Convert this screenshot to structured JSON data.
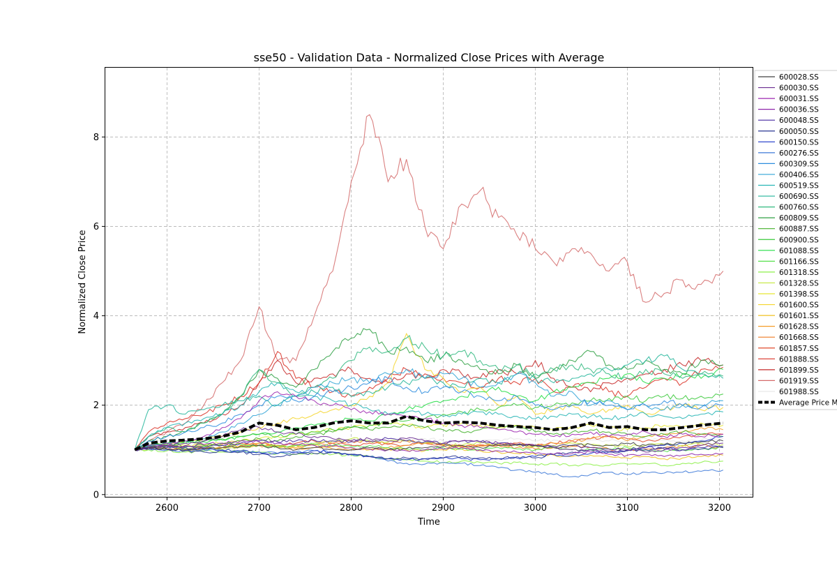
{
  "chart_data": {
    "type": "line",
    "title": "sse50 - Validation Data - Normalized Close Prices with Average",
    "xlabel": "Time",
    "ylabel": "Normalized Close Price",
    "xlim": [
      2533,
      3236
    ],
    "ylim": [
      -0.05,
      9.55
    ],
    "x_ticks": [
      2600,
      2700,
      2800,
      2900,
      3000,
      3100,
      3200
    ],
    "y_ticks": [
      0,
      2,
      4,
      6,
      8
    ],
    "grid": true,
    "legend_position": "right, partially clipped",
    "x": [
      2565,
      2580,
      2600,
      2620,
      2640,
      2660,
      2680,
      2700,
      2720,
      2740,
      2760,
      2780,
      2800,
      2820,
      2840,
      2860,
      2880,
      2900,
      2920,
      2940,
      2960,
      2980,
      3000,
      3020,
      3040,
      3060,
      3080,
      3100,
      3120,
      3140,
      3160,
      3180,
      3204
    ],
    "series": [
      {
        "name": "600028.SS",
        "color": "#404040",
        "values": [
          1.0,
          1.05,
          1.02,
          1.0,
          1.03,
          1.05,
          1.08,
          1.1,
          1.05,
          1.0,
          1.05,
          1.02,
          1.0,
          1.05,
          1.0,
          1.03,
          1.05,
          1.08,
          1.1,
          1.05,
          1.1,
          1.12,
          1.1,
          1.05,
          1.1,
          1.12,
          1.1,
          1.15,
          1.1,
          1.12,
          1.15,
          1.18,
          1.2
        ]
      },
      {
        "name": "600030.SS",
        "color": "#6a2c91",
        "values": [
          1.0,
          1.08,
          1.1,
          1.15,
          1.2,
          1.3,
          1.45,
          1.5,
          1.4,
          1.35,
          1.3,
          1.25,
          1.2,
          1.25,
          1.2,
          1.25,
          1.2,
          1.15,
          1.2,
          1.18,
          1.15,
          1.1,
          1.1,
          1.05,
          1.0,
          1.0,
          0.98,
          1.0,
          0.95,
          1.0,
          1.05,
          1.1,
          1.15
        ]
      },
      {
        "name": "600031.SS",
        "color": "#9c27b0",
        "values": [
          1.0,
          1.1,
          1.15,
          1.2,
          1.3,
          1.5,
          1.7,
          2.1,
          2.3,
          2.2,
          2.1,
          2.0,
          1.9,
          1.85,
          1.8,
          1.75,
          1.7,
          1.6,
          1.55,
          1.5,
          1.45,
          1.4,
          1.35,
          1.3,
          1.35,
          1.4,
          1.3,
          1.35,
          1.4,
          1.3,
          1.35,
          1.3,
          1.35
        ]
      },
      {
        "name": "600036.SS",
        "color": "#8e24aa",
        "values": [
          1.0,
          1.05,
          1.08,
          1.1,
          1.12,
          1.15,
          1.2,
          1.18,
          1.15,
          1.12,
          1.1,
          1.08,
          1.05,
          1.02,
          1.0,
          0.98,
          1.0,
          1.02,
          1.05,
          1.0,
          0.98,
          0.95,
          0.92,
          0.9,
          0.92,
          0.95,
          0.9,
          0.88,
          0.9,
          0.85,
          0.88,
          0.9,
          0.92
        ]
      },
      {
        "name": "600048.SS",
        "color": "#4527a0",
        "values": [
          1.0,
          1.02,
          1.05,
          1.08,
          1.05,
          1.1,
          1.15,
          1.2,
          1.18,
          1.2,
          1.22,
          1.2,
          1.18,
          1.2,
          1.25,
          1.2,
          1.18,
          1.15,
          1.2,
          1.18,
          1.15,
          1.12,
          1.1,
          1.08,
          1.1,
          1.05,
          1.02,
          1.0,
          1.05,
          1.02,
          1.0,
          1.05,
          1.08
        ]
      },
      {
        "name": "600050.SS",
        "color": "#283593",
        "values": [
          1.0,
          1.05,
          1.02,
          0.98,
          0.95,
          0.98,
          0.95,
          0.9,
          0.85,
          0.9,
          0.92,
          0.95,
          0.9,
          0.85,
          0.8,
          0.82,
          0.8,
          0.82,
          0.85,
          0.82,
          0.8,
          0.85,
          0.82,
          0.9,
          0.95,
          1.0,
          0.95,
          0.98,
          1.0,
          1.05,
          1.0,
          1.02,
          1.05
        ]
      },
      {
        "name": "600150.SS",
        "color": "#1a35c7",
        "values": [
          1.0,
          1.05,
          1.08,
          1.05,
          1.02,
          1.0,
          0.98,
          0.95,
          0.92,
          0.95,
          0.98,
          0.95,
          0.9,
          0.85,
          0.8,
          0.78,
          0.8,
          0.82,
          0.8,
          0.78,
          0.8,
          0.82,
          0.85,
          0.9,
          0.88,
          0.92,
          0.95,
          1.0,
          1.05,
          1.1,
          1.15,
          1.2,
          1.3
        ]
      },
      {
        "name": "600276.SS",
        "color": "#3c78d8",
        "values": [
          1.0,
          1.02,
          1.0,
          0.98,
          1.0,
          0.98,
          0.95,
          0.95,
          0.92,
          0.95,
          0.98,
          0.95,
          0.9,
          0.85,
          0.75,
          0.7,
          0.68,
          0.72,
          0.7,
          0.65,
          0.6,
          0.55,
          0.5,
          0.45,
          0.4,
          0.45,
          0.5,
          0.45,
          0.5,
          0.48,
          0.5,
          0.52,
          0.55
        ]
      },
      {
        "name": "600309.SS",
        "color": "#2b8cde",
        "values": [
          1.0,
          1.2,
          1.3,
          1.4,
          1.5,
          1.6,
          1.8,
          2.0,
          2.2,
          2.1,
          2.2,
          2.3,
          2.4,
          2.5,
          2.6,
          2.4,
          2.3,
          2.4,
          2.3,
          2.2,
          2.1,
          2.2,
          2.0,
          1.9,
          2.0,
          2.1,
          2.0,
          1.9,
          2.0,
          2.1,
          2.0,
          1.95,
          2.0
        ]
      },
      {
        "name": "600406.SS",
        "color": "#2fa3d6",
        "values": [
          1.0,
          1.1,
          1.15,
          1.2,
          1.25,
          1.4,
          1.6,
          1.8,
          2.0,
          2.2,
          2.4,
          2.5,
          2.6,
          2.5,
          2.7,
          2.8,
          2.6,
          2.7,
          2.6,
          2.4,
          2.5,
          2.7,
          2.5,
          2.2,
          2.3,
          2.0,
          2.1,
          1.9,
          2.0,
          1.9,
          2.0,
          2.0,
          2.1
        ]
      },
      {
        "name": "600519.SS",
        "color": "#26b5b5",
        "values": [
          1.0,
          1.3,
          1.5,
          1.6,
          1.7,
          1.8,
          2.0,
          2.3,
          2.5,
          2.3,
          2.2,
          2.1,
          2.0,
          1.9,
          1.8,
          1.85,
          1.8,
          1.75,
          1.8,
          1.85,
          1.8,
          1.75,
          1.7,
          1.75,
          1.8,
          1.75,
          1.7,
          1.75,
          1.8,
          1.75,
          1.7,
          1.8,
          1.85
        ]
      },
      {
        "name": "600690.SS",
        "color": "#22b59a",
        "values": [
          1.0,
          1.9,
          2.0,
          1.8,
          1.9,
          2.0,
          2.1,
          2.2,
          2.0,
          2.2,
          2.3,
          2.4,
          2.2,
          2.3,
          2.4,
          2.5,
          2.6,
          2.5,
          2.4,
          2.6,
          2.5,
          2.7,
          2.6,
          2.5,
          2.6,
          2.7,
          2.8,
          2.9,
          3.0,
          3.1,
          2.8,
          2.7,
          2.6
        ]
      },
      {
        "name": "600760.SS",
        "color": "#30b97f",
        "values": [
          1.0,
          1.3,
          1.5,
          1.4,
          1.6,
          1.8,
          2.2,
          2.8,
          2.5,
          2.2,
          2.4,
          2.6,
          3.0,
          3.3,
          3.2,
          3.5,
          3.3,
          3.1,
          3.2,
          3.0,
          2.8,
          2.9,
          2.7,
          2.8,
          2.9,
          2.8,
          2.7,
          2.6,
          2.8,
          2.7,
          2.6,
          2.7,
          2.65
        ]
      },
      {
        "name": "600809.SS",
        "color": "#2ea043",
        "values": [
          1.0,
          1.2,
          1.3,
          1.4,
          1.6,
          1.8,
          2.2,
          2.8,
          2.6,
          2.4,
          2.8,
          3.2,
          3.5,
          3.7,
          3.2,
          3.3,
          3.0,
          3.1,
          3.0,
          2.8,
          2.7,
          2.9,
          2.6,
          2.8,
          3.0,
          3.2,
          2.9,
          2.8,
          3.0,
          2.8,
          2.7,
          3.0,
          2.9
        ]
      },
      {
        "name": "600887.SS",
        "color": "#43b02a",
        "values": [
          1.0,
          1.05,
          1.1,
          1.08,
          1.1,
          1.15,
          1.2,
          1.25,
          1.2,
          1.3,
          1.35,
          1.4,
          1.5,
          1.45,
          1.5,
          1.55,
          1.5,
          1.45,
          1.4,
          1.45,
          1.5,
          1.55,
          1.4,
          1.35,
          1.4,
          1.45,
          1.4,
          1.35,
          1.3,
          1.35,
          1.4,
          1.35,
          1.3
        ]
      },
      {
        "name": "600900.SS",
        "color": "#3ac93a",
        "values": [
          1.0,
          1.1,
          1.12,
          1.15,
          1.2,
          1.25,
          1.3,
          1.35,
          1.3,
          1.35,
          1.4,
          1.45,
          1.5,
          1.55,
          1.6,
          1.65,
          1.7,
          1.8,
          1.85,
          1.9,
          1.95,
          2.0,
          1.95,
          2.0,
          2.05,
          2.1,
          2.15,
          2.2,
          2.1,
          2.2,
          2.15,
          2.2,
          2.25
        ]
      },
      {
        "name": "601088.SS",
        "color": "#22dd44",
        "values": [
          1.0,
          1.1,
          1.15,
          1.2,
          1.18,
          1.22,
          1.3,
          1.35,
          1.4,
          1.5,
          1.55,
          1.6,
          1.7,
          1.65,
          1.8,
          1.9,
          2.0,
          2.1,
          2.2,
          2.3,
          2.4,
          2.2,
          2.1,
          2.3,
          2.4,
          2.5,
          2.6,
          2.7,
          2.5,
          2.6,
          2.7,
          2.6,
          2.8
        ]
      },
      {
        "name": "601166.SS",
        "color": "#56e04c",
        "values": [
          1.0,
          1.08,
          1.1,
          1.05,
          1.08,
          1.1,
          1.12,
          1.1,
          1.08,
          1.1,
          1.12,
          1.1,
          1.08,
          1.1,
          1.05,
          1.02,
          1.0,
          1.05,
          1.02,
          1.0,
          1.05,
          1.02,
          1.0,
          1.05,
          1.02,
          1.0,
          1.02,
          1.05,
          1.0,
          0.98,
          1.0,
          1.02,
          1.05
        ]
      },
      {
        "name": "601318.SS",
        "color": "#8cf048",
        "values": [
          1.0,
          1.0,
          0.98,
          0.95,
          0.97,
          0.95,
          0.98,
          0.95,
          0.92,
          0.9,
          0.92,
          0.9,
          0.88,
          0.85,
          0.8,
          0.78,
          0.75,
          0.72,
          0.75,
          0.72,
          0.7,
          0.72,
          0.68,
          0.7,
          0.65,
          0.68,
          0.65,
          0.68,
          0.7,
          0.65,
          0.7,
          0.72,
          0.75
        ]
      },
      {
        "name": "601328.SS",
        "color": "#c3e83c",
        "values": [
          1.0,
          1.02,
          1.05,
          1.02,
          1.0,
          1.02,
          1.05,
          1.1,
          1.08,
          1.1,
          1.15,
          1.2,
          1.25,
          1.2,
          1.18,
          1.2,
          1.15,
          1.12,
          1.1,
          1.15,
          1.12,
          1.1,
          1.08,
          1.1,
          1.15,
          1.12,
          1.1,
          1.08,
          1.1,
          1.12,
          1.1,
          1.15,
          1.12
        ]
      },
      {
        "name": "601398.SS",
        "color": "#e6e830",
        "values": [
          1.0,
          1.05,
          1.08,
          1.1,
          1.12,
          1.15,
          1.2,
          1.25,
          1.3,
          1.35,
          1.4,
          1.45,
          1.5,
          1.55,
          1.6,
          1.55,
          1.5,
          1.55,
          1.6,
          1.55,
          1.5,
          1.55,
          1.5,
          1.45,
          1.5,
          1.55,
          1.5,
          1.45,
          1.5,
          1.55,
          1.5,
          1.6,
          1.55
        ]
      },
      {
        "name": "601600.SS",
        "color": "#f5d52b",
        "values": [
          1.0,
          1.1,
          1.15,
          1.2,
          1.25,
          1.3,
          1.4,
          1.5,
          1.6,
          1.7,
          1.8,
          1.9,
          2.0,
          2.2,
          2.5,
          3.6,
          2.8,
          2.6,
          2.3,
          2.4,
          2.0,
          2.2,
          1.8,
          1.9,
          2.0,
          1.8,
          1.9,
          2.0,
          1.8,
          1.9,
          2.0,
          1.9,
          1.95
        ]
      },
      {
        "name": "601601.SS",
        "color": "#f0c020",
        "values": [
          1.0,
          1.02,
          1.05,
          1.02,
          1.0,
          1.05,
          1.1,
          1.15,
          1.1,
          1.05,
          1.1,
          1.08,
          1.05,
          1.0,
          1.02,
          1.0,
          0.98,
          1.0,
          1.02,
          0.98,
          0.95,
          0.92,
          0.9,
          0.88,
          0.85,
          0.88,
          0.85,
          0.82,
          0.85,
          0.8,
          0.82,
          0.85,
          0.88
        ]
      },
      {
        "name": "601628.SS",
        "color": "#f59c28",
        "values": [
          1.0,
          1.05,
          1.08,
          1.05,
          1.02,
          1.05,
          1.08,
          1.1,
          1.05,
          1.02,
          1.05,
          1.02,
          1.0,
          1.02,
          1.05,
          1.1,
          1.15,
          1.1,
          1.05,
          1.08,
          1.1,
          1.12,
          1.1,
          1.15,
          1.2,
          1.25,
          1.3,
          1.2,
          1.3,
          1.35,
          1.4,
          1.5,
          1.45
        ]
      },
      {
        "name": "601668.SS",
        "color": "#ee7a22",
        "values": [
          1.0,
          1.05,
          1.1,
          1.05,
          1.08,
          1.12,
          1.15,
          1.1,
          1.08,
          1.1,
          1.12,
          1.15,
          1.2,
          1.18,
          1.15,
          1.2,
          1.15,
          1.12,
          1.1,
          1.12,
          1.1,
          1.05,
          1.02,
          1.05,
          1.08,
          1.05,
          1.02,
          1.0,
          1.02,
          1.05,
          1.08,
          1.1,
          1.05
        ]
      },
      {
        "name": "601857.SS",
        "color": "#e04a2c",
        "values": [
          1.0,
          1.05,
          1.02,
          1.0,
          1.02,
          1.05,
          1.1,
          1.15,
          1.1,
          1.15,
          1.2,
          1.15,
          1.1,
          1.15,
          1.12,
          1.1,
          1.15,
          1.1,
          1.08,
          1.1,
          1.12,
          1.15,
          1.1,
          1.15,
          1.2,
          1.25,
          1.3,
          1.25,
          1.2,
          1.25,
          1.3,
          1.35,
          1.35
        ]
      },
      {
        "name": "601888.SS",
        "color": "#d93025",
        "values": [
          1.0,
          1.4,
          1.6,
          1.7,
          1.8,
          2.0,
          2.2,
          2.5,
          3.2,
          2.6,
          2.4,
          2.3,
          2.2,
          2.4,
          2.6,
          2.8,
          2.7,
          2.6,
          2.5,
          2.4,
          2.6,
          2.5,
          2.6,
          2.3,
          2.4,
          2.5,
          2.3,
          2.2,
          2.4,
          2.6,
          2.5,
          2.8,
          2.85
        ]
      },
      {
        "name": "601899.SS",
        "color": "#c62828",
        "values": [
          1.0,
          1.3,
          1.4,
          1.5,
          1.6,
          1.8,
          2.0,
          2.5,
          3.0,
          2.5,
          2.6,
          2.7,
          2.8,
          2.6,
          2.5,
          2.7,
          2.6,
          2.8,
          2.7,
          2.6,
          2.8,
          2.7,
          3.0,
          2.6,
          2.4,
          2.3,
          2.5,
          2.6,
          2.7,
          2.8,
          2.9,
          3.0,
          2.9
        ]
      },
      {
        "name": "601919.SS",
        "color": "#d46a6a",
        "values": [
          1.0,
          1.2,
          1.4,
          1.6,
          2.0,
          2.5,
          3.0,
          4.2,
          3.0,
          3.0,
          4.0,
          5.0,
          7.0,
          8.5,
          7.0,
          7.5,
          6.0,
          5.5,
          6.5,
          6.8,
          6.2,
          5.8,
          5.5,
          5.2,
          5.5,
          5.4,
          5.0,
          5.2,
          4.3,
          4.5,
          4.8,
          4.7,
          5.0
        ]
      },
      {
        "name": "601988.SS",
        "color": "#e6e6e6",
        "values": [
          1.0,
          1.05,
          1.02,
          1.0,
          1.02,
          1.05,
          1.08,
          1.1,
          1.12,
          1.15,
          1.18,
          1.2,
          1.22,
          1.25,
          1.2,
          1.22,
          1.25,
          1.2,
          1.18,
          1.2,
          1.22,
          1.25,
          1.2,
          1.22,
          1.25,
          1.22,
          1.2,
          1.22,
          1.25,
          1.22,
          1.2,
          1.22,
          1.25
        ]
      },
      {
        "name": "Average Price Movement",
        "color": "#000000",
        "dashed": true,
        "values": [
          1.0,
          1.15,
          1.2,
          1.22,
          1.25,
          1.3,
          1.4,
          1.6,
          1.55,
          1.45,
          1.5,
          1.6,
          1.65,
          1.6,
          1.6,
          1.75,
          1.65,
          1.6,
          1.62,
          1.6,
          1.55,
          1.52,
          1.5,
          1.45,
          1.5,
          1.6,
          1.5,
          1.52,
          1.45,
          1.45,
          1.5,
          1.55,
          1.6
        ]
      }
    ]
  }
}
